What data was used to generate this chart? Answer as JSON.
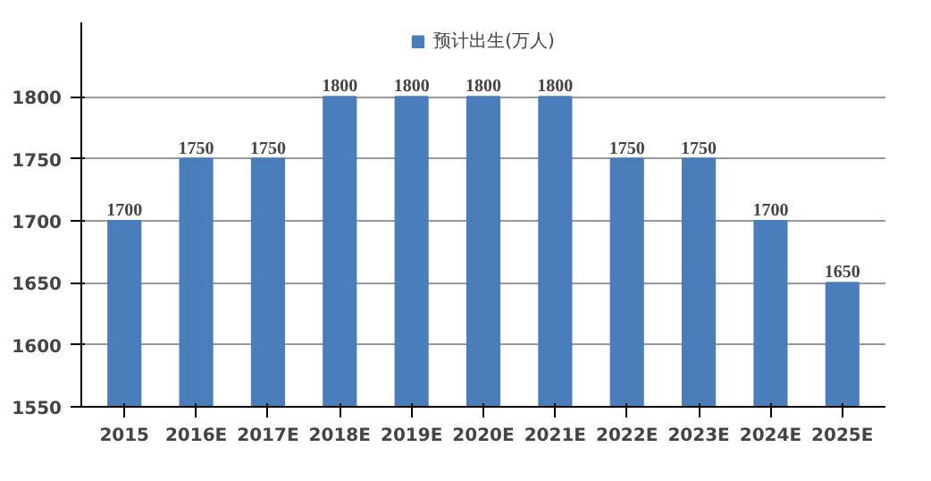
{
  "chart_data": {
    "type": "bar",
    "categories": [
      "2015",
      "2016E",
      "2017E",
      "2018E",
      "2019E",
      "2020E",
      "2021E",
      "2022E",
      "2023E",
      "2024E",
      "2025E"
    ],
    "series": [
      {
        "name": "预计出生(万人)",
        "color": "#4a7ebb",
        "values": [
          1700,
          1750,
          1750,
          1800,
          1800,
          1800,
          1800,
          1750,
          1750,
          1700,
          1650
        ]
      }
    ],
    "ylim": [
      1550,
      1860
    ],
    "yticks": [
      1550,
      1600,
      1650,
      1700,
      1750,
      1800
    ],
    "grid": "y",
    "legend": "top",
    "data_labels": true
  }
}
